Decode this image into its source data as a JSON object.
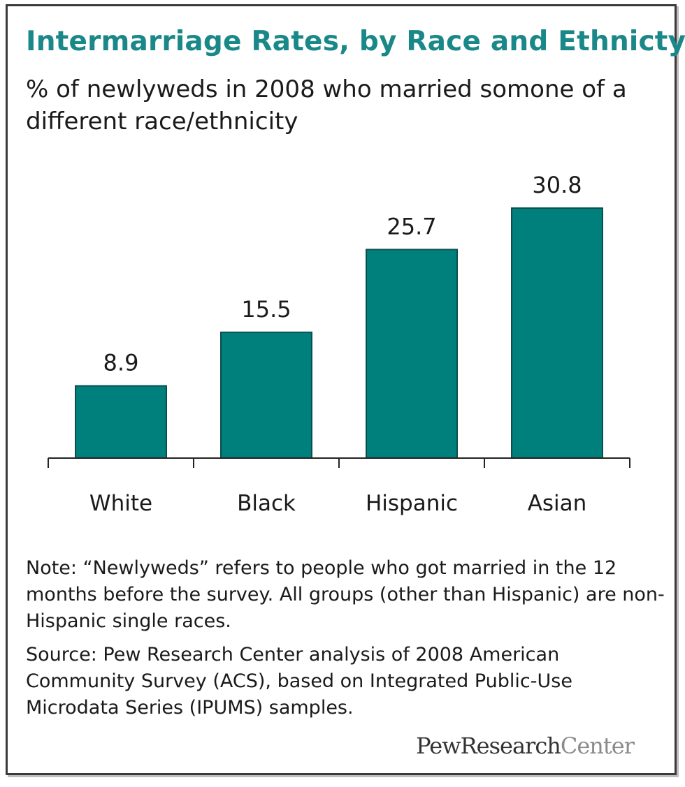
{
  "chart_data": {
    "type": "bar",
    "title": "Intermarriage Rates, by Race and Ethnicty",
    "subtitle": "% of newlyweds in 2008 who married somone of a different race/ethnicity",
    "categories": [
      "White",
      "Black",
      "Hispanic",
      "Asian"
    ],
    "values": [
      8.9,
      15.5,
      25.7,
      30.8
    ],
    "value_labels": [
      "8.9",
      "15.5",
      "25.7",
      "30.8"
    ],
    "xlabel": "",
    "ylabel": "",
    "ylim": [
      0,
      30.8
    ],
    "grid": false,
    "legend": "none",
    "bar_color": "#00807c"
  },
  "footer": {
    "note": "Note: “Newlyweds” refers to people who got married in the 12 months before the survey. All groups (other than Hispanic) are non-Hispanic single races.",
    "source": "Source: Pew Research Center analysis of 2008 American Community Survey (ACS), based on Integrated Public-Use Microdata Series (IPUMS) samples.",
    "logo_bold": "PewResearch",
    "logo_light": "Center"
  }
}
